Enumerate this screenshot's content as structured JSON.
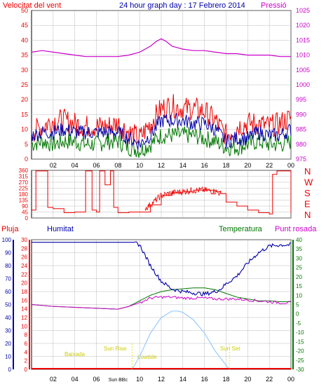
{
  "header": {
    "left_title": "Velocitat del vent",
    "center_title": "24 hour graph day : 17 Febrero 2014",
    "right_title": "Pressió"
  },
  "colors": {
    "red": "#ee0000",
    "blue": "#0000aa",
    "green": "#007700",
    "magenta": "#cc00cc",
    "lightblue": "#99ccff",
    "grid": "#bbbbbb",
    "yellow": "#dddd00"
  },
  "x_ticks": [
    "02",
    "04",
    "06",
    "08",
    "10",
    "12",
    "14",
    "16",
    "18",
    "20",
    "22",
    "00"
  ],
  "x_ticks_bottom": [
    "02",
    "04",
    "06",
    "Sun BBc",
    "10",
    "12",
    "14",
    "16",
    "18",
    "20",
    "22",
    "00"
  ],
  "chart_data": [
    {
      "type": "line",
      "name": "wind-and-pressure",
      "x_range": [
        0,
        24
      ],
      "y_left": {
        "ticks": [
          "0",
          "5",
          "10",
          "15",
          "20",
          "25",
          "30",
          "35",
          "40",
          "45",
          "50"
        ],
        "range": [
          0,
          50
        ]
      },
      "y_right": {
        "ticks": [
          "975",
          "980",
          "985",
          "990",
          "995",
          "1000",
          "1005",
          "1010",
          "1015",
          "1020",
          "1025"
        ],
        "range": [
          975,
          1025
        ]
      },
      "series": [
        {
          "name": "Pressió",
          "axis": "right",
          "color": "#cc00cc",
          "x": [
            0,
            1,
            2,
            3,
            4,
            5,
            6,
            7,
            8,
            9,
            10,
            11,
            11.5,
            12,
            12.5,
            13,
            14,
            15,
            16,
            17,
            18,
            19,
            20,
            21,
            22,
            23,
            24
          ],
          "y": [
            1011,
            1011.5,
            1011,
            1010.5,
            1010,
            1009.5,
            1009.5,
            1009.5,
            1009.5,
            1010,
            1011,
            1013,
            1014.5,
            1015.5,
            1014.5,
            1013,
            1012,
            1011.5,
            1011.5,
            1011,
            1010.5,
            1010.5,
            1010,
            1010,
            1010,
            1009.5,
            1009.5
          ]
        },
        {
          "name": "wind gust",
          "axis": "left",
          "color": "#ee0000",
          "x": [
            0,
            1,
            2,
            3,
            4,
            5,
            6,
            7,
            8,
            9,
            10,
            11,
            12,
            13,
            14,
            15,
            16,
            17,
            18,
            19,
            20,
            21,
            22,
            23,
            24
          ],
          "y": [
            9,
            11,
            13,
            13,
            12,
            11,
            11,
            11,
            12,
            9,
            7,
            12,
            17,
            18,
            17,
            17,
            16,
            13,
            8,
            11,
            12,
            12,
            11,
            12,
            14
          ]
        },
        {
          "name": "wind average",
          "axis": "left",
          "color": "#0000aa",
          "x": [
            0,
            1,
            2,
            3,
            4,
            5,
            6,
            7,
            8,
            9,
            10,
            11,
            12,
            13,
            14,
            15,
            16,
            17,
            18,
            19,
            20,
            21,
            22,
            23,
            24
          ],
          "y": [
            8,
            9,
            9,
            10,
            9,
            9,
            9,
            9,
            9,
            7,
            5,
            8,
            13,
            13,
            13,
            12,
            12,
            10,
            6,
            7,
            7,
            9,
            8,
            8,
            10
          ]
        },
        {
          "name": "wind low",
          "axis": "left",
          "color": "#007700",
          "x": [
            0,
            1,
            2,
            3,
            4,
            5,
            6,
            7,
            8,
            9,
            10,
            11,
            12,
            13,
            14,
            15,
            16,
            17,
            18,
            19,
            20,
            21,
            22,
            23,
            24
          ],
          "y": [
            5,
            6,
            5,
            6,
            6,
            5,
            5,
            6,
            6,
            4,
            3,
            5,
            8,
            8,
            8,
            8,
            7,
            6,
            4,
            4,
            5,
            6,
            5,
            5,
            6
          ]
        }
      ]
    },
    {
      "type": "line",
      "name": "wind-direction",
      "x_range": [
        0,
        24
      ],
      "y_left": {
        "ticks": [
          "360",
          "315",
          "270",
          "225",
          "180",
          "135",
          "90",
          "45",
          "0"
        ],
        "range": [
          0,
          360
        ]
      },
      "y_right": {
        "ticks": [
          "N",
          "W",
          "S",
          "E",
          "N"
        ]
      },
      "series": [
        {
          "name": "direction",
          "axis": "left",
          "color": "#ee0000",
          "x": [
            0,
            0.4,
            0.8,
            1.2,
            1.5,
            2,
            3,
            4,
            4.6,
            5,
            5.6,
            6,
            6.3,
            6.8,
            7.3,
            7.6,
            8,
            9,
            10,
            11,
            12,
            13,
            14,
            15,
            16,
            17,
            17.5,
            18,
            19,
            20,
            21,
            22,
            22.3,
            22.7,
            23,
            23.6,
            24
          ],
          "y": [
            60,
            355,
            355,
            355,
            80,
            70,
            40,
            45,
            45,
            355,
            60,
            45,
            355,
            250,
            355,
            80,
            40,
            45,
            45,
            100,
            170,
            190,
            200,
            210,
            210,
            200,
            185,
            120,
            90,
            60,
            40,
            30,
            330,
            355,
            355,
            355,
            40
          ]
        }
      ]
    },
    {
      "type": "line",
      "name": "humidity-temperature",
      "x_range": [
        0,
        24
      ],
      "y_left": {
        "ticks": [
          "100",
          "90",
          "80",
          "70",
          "60",
          "50",
          "40",
          "30",
          "20",
          "10",
          "0"
        ],
        "range": [
          0,
          100
        ]
      },
      "y_left2": {
        "ticks": [
          "30",
          "28",
          "26",
          "24",
          "22",
          "20",
          "18",
          "16",
          "14",
          "12",
          "10",
          "8",
          "6",
          "4",
          "2",
          "0"
        ],
        "range": [
          0,
          30
        ]
      },
      "y_right": {
        "ticks": [
          "40",
          "35",
          "30",
          "25",
          "20",
          "15",
          "10",
          "5",
          "0",
          "-5",
          "-10",
          "-15",
          "-20",
          "-25",
          "-30"
        ],
        "range": [
          -30,
          40
        ]
      },
      "series": [
        {
          "name": "Humitat",
          "axis": "left",
          "color": "#0000aa",
          "x": [
            0,
            4,
            8,
            9.5,
            10,
            11,
            12,
            13,
            14,
            15,
            16,
            17,
            17.5,
            18,
            19,
            20,
            21,
            22,
            23,
            24
          ],
          "y": [
            98,
            98,
            98,
            98,
            96,
            80,
            68,
            62,
            60,
            59,
            58,
            60,
            62,
            66,
            72,
            82,
            90,
            95,
            96,
            96
          ]
        },
        {
          "name": "Temperatura",
          "axis": "right",
          "color": "#007700",
          "x": [
            0,
            2,
            4,
            6,
            8,
            9,
            10,
            11,
            12,
            13,
            14,
            15,
            16,
            17,
            18,
            19,
            20,
            21,
            22,
            23,
            24
          ],
          "y": [
            5,
            4,
            3.5,
            3,
            2.5,
            4,
            7,
            10,
            12,
            13,
            13.5,
            14,
            14,
            13,
            11,
            9,
            8,
            7,
            7,
            6.5,
            6.5
          ]
        },
        {
          "name": "Punt rosada",
          "axis": "right",
          "color": "#cc00cc",
          "x": [
            0,
            2,
            4,
            6,
            8,
            9,
            10,
            11,
            12,
            13,
            14,
            15,
            16,
            17,
            18,
            19,
            20,
            21,
            22,
            23,
            24
          ],
          "y": [
            5,
            4,
            3.5,
            3,
            2.5,
            4,
            6,
            8.5,
            9,
            9,
            8.5,
            8.5,
            8.5,
            8,
            8,
            8,
            7.5,
            7,
            6.5,
            6,
            6
          ]
        },
        {
          "name": "Solar",
          "axis": "left",
          "color": "#99ccff",
          "x": [
            9.3,
            10,
            11,
            12,
            13,
            13.5,
            14,
            15,
            16,
            17,
            18.3
          ],
          "y": [
            0,
            10,
            28,
            40,
            45,
            45,
            44,
            38,
            28,
            14,
            0
          ]
        }
      ],
      "labels": {
        "pluja": "Pluja",
        "humitat": "Humitat",
        "temperatura": "Temperatura",
        "punt_rosada": "Punt rosada",
        "baixada": "Baixada",
        "sun_rise": "Sun Rise",
        "lowtide": "Lowtide",
        "sun_set": "Sun Set"
      }
    }
  ]
}
